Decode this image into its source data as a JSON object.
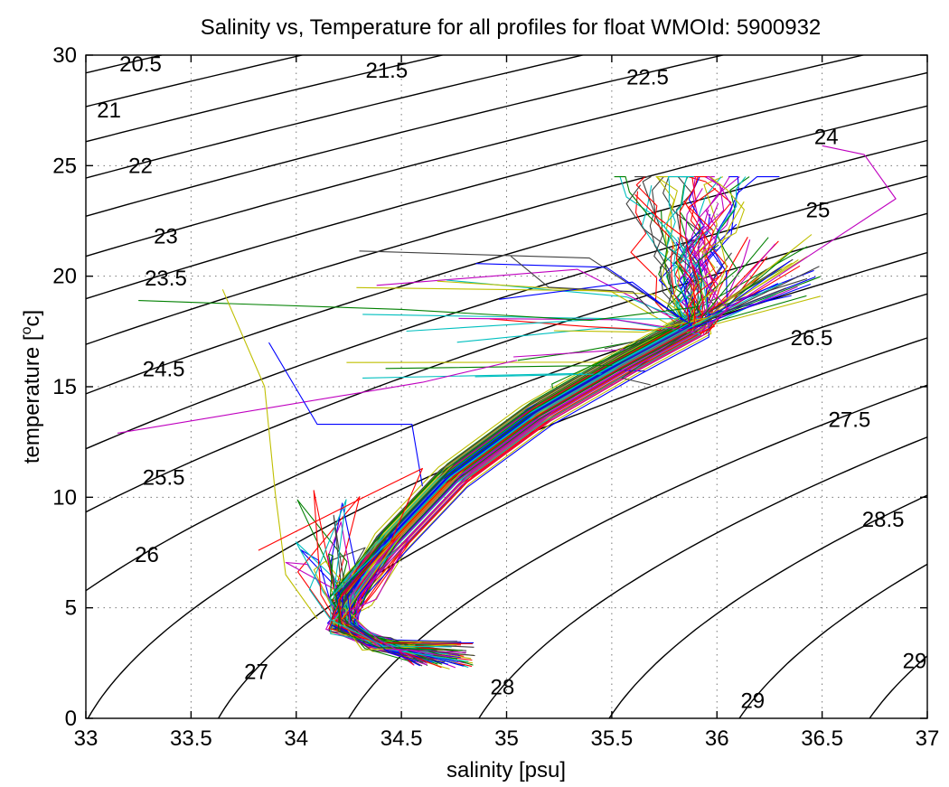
{
  "chart_data": {
    "type": "line",
    "title": "Salinity vs, Temperature for all profiles for float WMOId: 5900932",
    "xlabel": "salinity [psu]",
    "ylabel_prefix": "temperature [",
    "ylabel_sup": "o",
    "ylabel_suffix": "c]",
    "xlim": [
      33,
      37
    ],
    "ylim": [
      0,
      30
    ],
    "xticks": [
      "33",
      "33.5",
      "34",
      "34.5",
      "35",
      "35.5",
      "36",
      "36.5",
      "37"
    ],
    "yticks": [
      "0",
      "5",
      "10",
      "15",
      "20",
      "25",
      "30"
    ],
    "grid": true,
    "contour_labels": [
      {
        "text": "20.5",
        "s": 33.26,
        "t": 29.6
      },
      {
        "text": "21",
        "s": 33.11,
        "t": 27.5
      },
      {
        "text": "21.5",
        "s": 34.43,
        "t": 29.3
      },
      {
        "text": "22",
        "s": 33.26,
        "t": 25.0
      },
      {
        "text": "22.5",
        "s": 35.67,
        "t": 29.0
      },
      {
        "text": "23",
        "s": 33.38,
        "t": 21.8
      },
      {
        "text": "23.5",
        "s": 33.38,
        "t": 19.9
      },
      {
        "text": "24",
        "s": 36.52,
        "t": 26.3
      },
      {
        "text": "24.5",
        "s": 33.37,
        "t": 15.8
      },
      {
        "text": "25",
        "s": 36.48,
        "t": 23.0
      },
      {
        "text": "25.5",
        "s": 33.37,
        "t": 10.9
      },
      {
        "text": "26",
        "s": 33.29,
        "t": 7.4
      },
      {
        "text": "26.5",
        "s": 36.45,
        "t": 17.2
      },
      {
        "text": "27",
        "s": 33.81,
        "t": 2.1
      },
      {
        "text": "27.5",
        "s": 36.63,
        "t": 13.5
      },
      {
        "text": "28",
        "s": 34.98,
        "t": 1.4
      },
      {
        "text": "28.5",
        "s": 36.79,
        "t": 9.0
      },
      {
        "text": "29",
        "s": 36.17,
        "t": 0.8
      },
      {
        "text": "29",
        "s": 36.94,
        "t": 2.6
      }
    ],
    "series_colors": [
      "#0000ff",
      "#008000",
      "#ff0000",
      "#00bfbf",
      "#bf00bf",
      "#bfbf00",
      "#404040"
    ]
  }
}
